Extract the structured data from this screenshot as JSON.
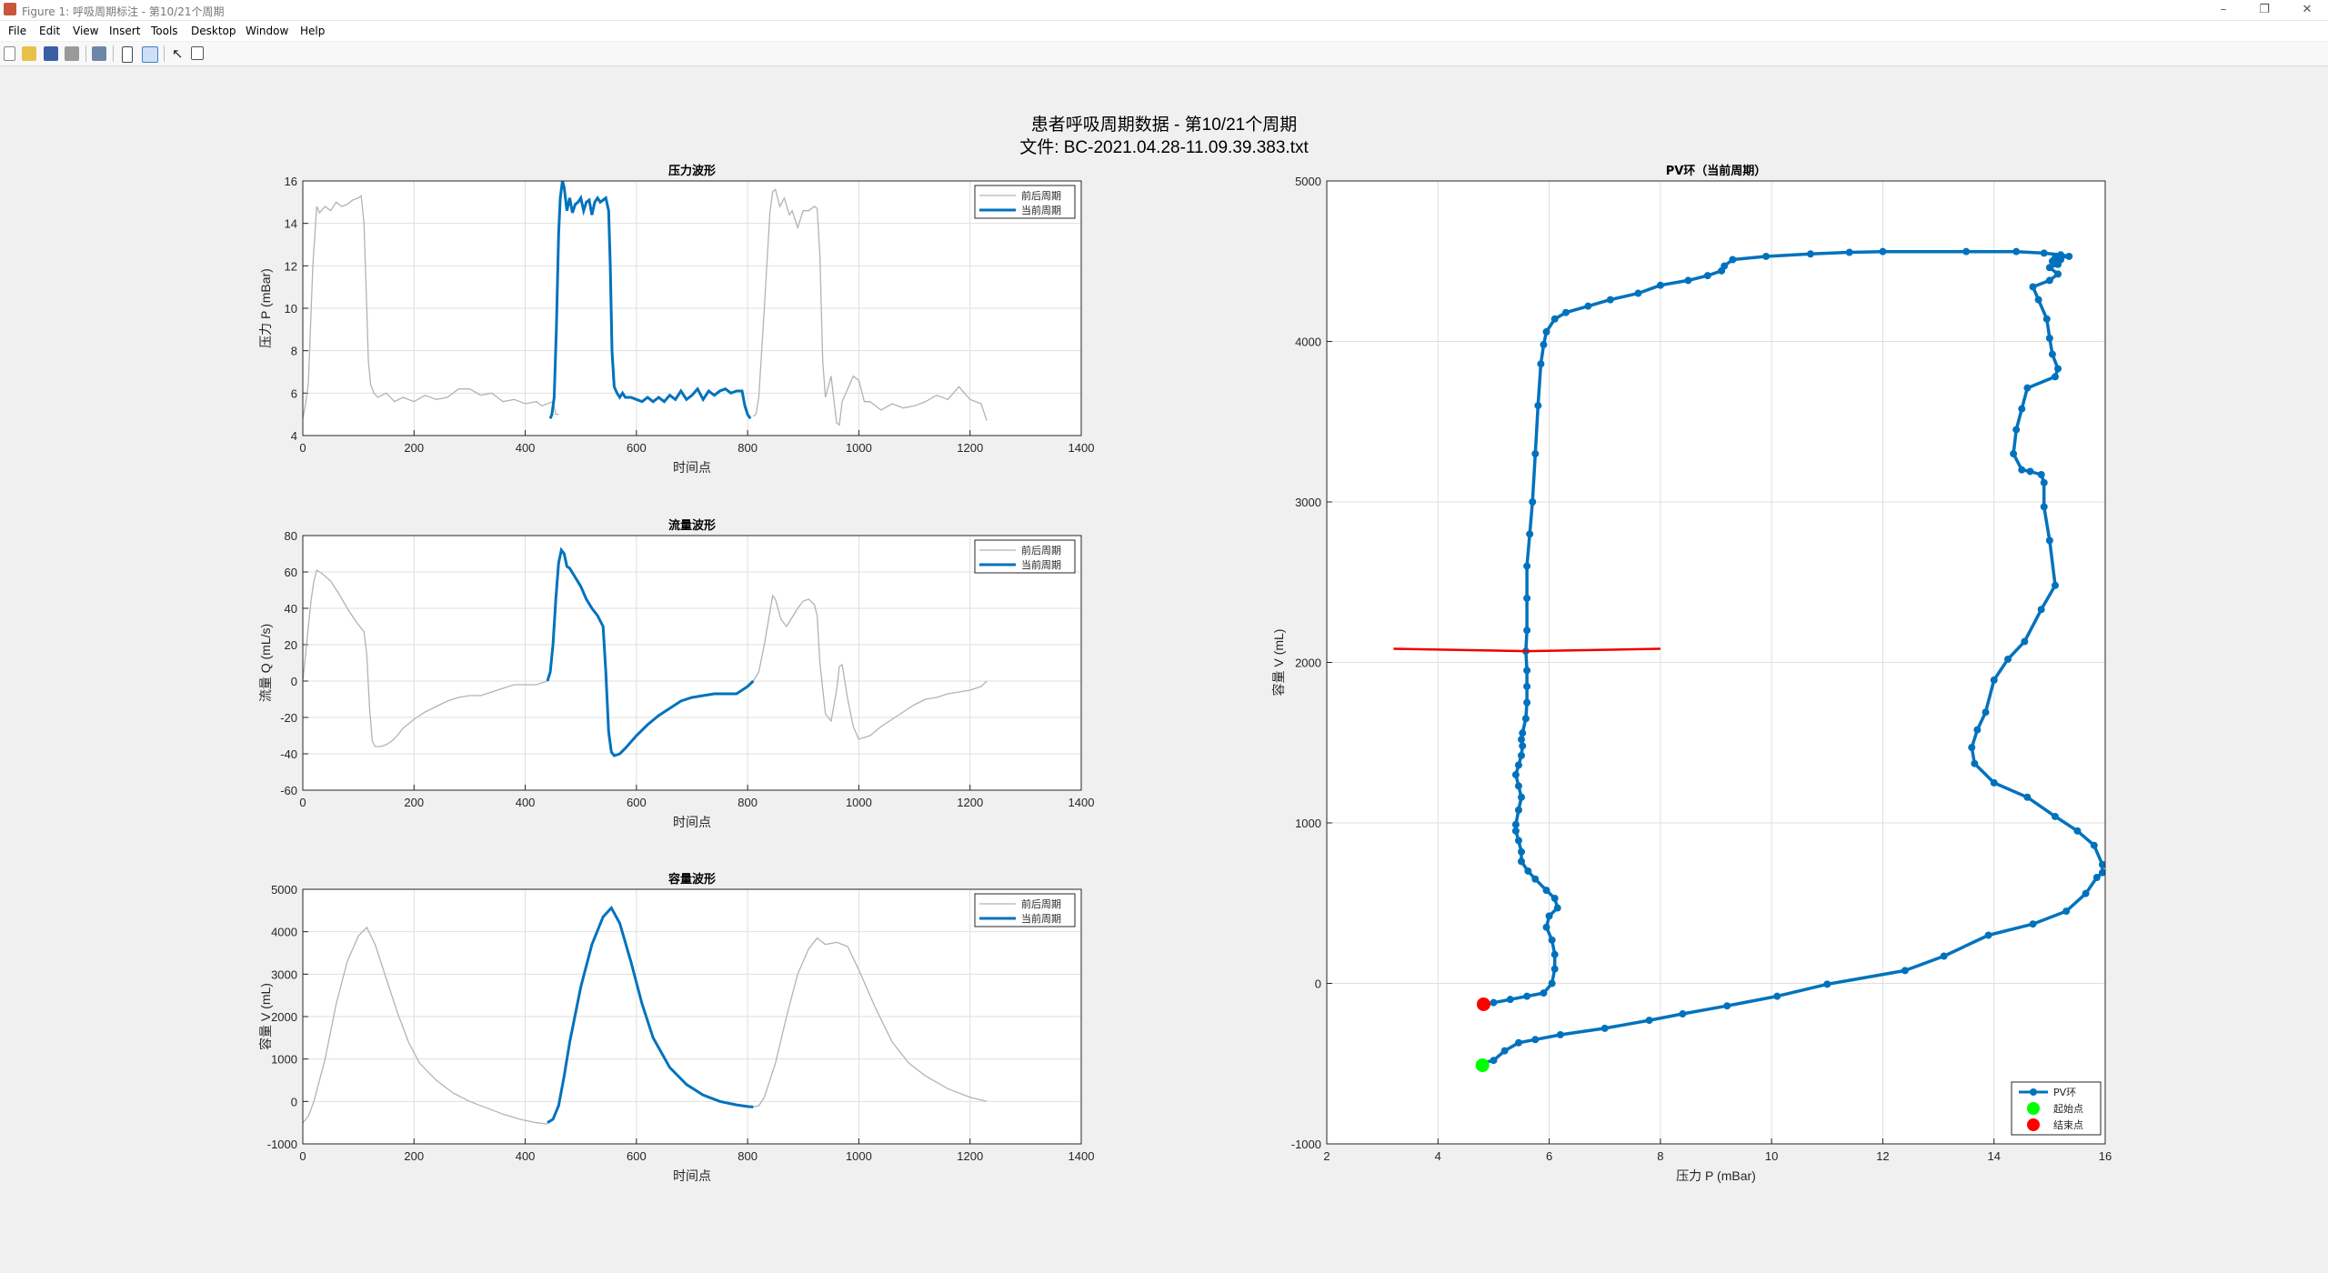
{
  "window": {
    "title": "Figure 1: 呼吸周期标注 - 第10/21个周期",
    "controls": [
      "–",
      "❐",
      "✕"
    ]
  },
  "menu": [
    "File",
    "Edit",
    "View",
    "Insert",
    "Tools",
    "Desktop",
    "Window",
    "Help"
  ],
  "toolbar": {
    "icons": [
      "new-figure-icon",
      "open-file-icon",
      "save-icon",
      "print-icon",
      "print-preview-icon",
      "dock-icon",
      "property-editor-icon",
      "pointer-icon",
      "plot-browser-icon"
    ]
  },
  "figure": {
    "title_line1": "患者呼吸周期数据 - 第10/21个周期",
    "title_line2": "文件: BC-2021.04.28-11.09.39.383.txt"
  },
  "colors": {
    "current": "#0072bd",
    "context": "#b3b3b3",
    "marker_line": "#ee0000",
    "start": "#00ff00",
    "end": "#ff0000",
    "grid": "#dfdfdf"
  },
  "chart_data": [
    {
      "id": "pressure",
      "type": "line",
      "title": "压力波形",
      "xlabel": "时间点",
      "ylabel": "压力 P (mBar)",
      "xlim": [
        0,
        1400
      ],
      "ylim": [
        4,
        16
      ],
      "xticks": [
        "0",
        "200",
        "400",
        "600",
        "800",
        "1000",
        "1200",
        "1400"
      ],
      "yticks": [
        "4",
        "6",
        "8",
        "10",
        "12",
        "14",
        "16"
      ],
      "grid": true,
      "legend": [
        "前后周期",
        "当前周期"
      ],
      "legend_position": "top-right",
      "series": [
        {
          "name": "前后周期",
          "role": "context",
          "x": [
            0,
            5,
            10,
            18,
            25,
            30,
            40,
            50,
            60,
            70,
            80,
            90,
            100,
            105,
            110,
            115,
            118,
            122,
            128,
            135,
            150,
            165,
            180,
            200,
            220,
            240,
            260,
            280,
            300,
            320,
            340,
            360,
            380,
            400,
            420,
            430,
            440,
            450,
            455,
            460
          ],
          "y": [
            4.8,
            5.5,
            6.5,
            12,
            14.8,
            14.5,
            14.8,
            14.6,
            15,
            14.8,
            14.9,
            15.1,
            15.2,
            15.3,
            14,
            10,
            7.5,
            6.4,
            6.0,
            5.8,
            6.0,
            5.6,
            5.8,
            5.6,
            5.9,
            5.7,
            5.8,
            6.2,
            6.2,
            5.9,
            6.0,
            5.6,
            5.7,
            5.5,
            5.6,
            5.4,
            5.5,
            5.6,
            5.0,
            5.0
          ]
        },
        {
          "name": "前后周期",
          "role": "context",
          "x": [
            810,
            815,
            820,
            830,
            840,
            845,
            850,
            858,
            866,
            875,
            880,
            890,
            900,
            910,
            920,
            925,
            930,
            935,
            940,
            950,
            960,
            965,
            970,
            980,
            990,
            1000,
            1010,
            1020,
            1040,
            1060,
            1080,
            1100,
            1120,
            1140,
            1160,
            1180,
            1200,
            1220,
            1230
          ],
          "y": [
            4.9,
            5.0,
            5.8,
            10,
            14.5,
            15.5,
            15.6,
            14.8,
            15.2,
            14.4,
            14.6,
            13.8,
            14.6,
            14.6,
            14.8,
            14.7,
            12.5,
            7.5,
            5.8,
            6.8,
            4.6,
            4.5,
            5.6,
            6.2,
            6.8,
            6.6,
            5.6,
            5.6,
            5.2,
            5.5,
            5.3,
            5.4,
            5.6,
            5.9,
            5.7,
            6.3,
            5.7,
            5.5,
            4.7
          ]
        },
        {
          "name": "当前周期",
          "role": "current",
          "x": [
            445,
            448,
            452,
            456,
            460,
            463,
            467,
            470,
            475,
            480,
            485,
            490,
            495,
            500,
            505,
            510,
            515,
            520,
            525,
            530,
            535,
            540,
            545,
            550,
            553,
            556,
            560,
            565,
            570,
            575,
            580,
            590,
            600,
            610,
            620,
            630,
            640,
            650,
            660,
            670,
            680,
            690,
            700,
            710,
            720,
            730,
            740,
            750,
            760,
            770,
            780,
            790,
            795,
            800,
            805
          ],
          "y": [
            4.8,
            5.0,
            5.8,
            9.0,
            13.5,
            15.2,
            16.0,
            15.7,
            14.6,
            15.2,
            14.5,
            14.9,
            15.0,
            15.2,
            14.6,
            15.0,
            15.1,
            14.4,
            15.0,
            15.2,
            15.0,
            15.1,
            15.2,
            14.6,
            12.0,
            8.0,
            6.3,
            6.0,
            5.8,
            6.0,
            5.8,
            5.8,
            5.7,
            5.6,
            5.8,
            5.6,
            5.8,
            5.6,
            5.9,
            5.7,
            6.1,
            5.7,
            5.9,
            6.2,
            5.7,
            6.1,
            5.9,
            6.1,
            6.2,
            6.0,
            6.1,
            6.1,
            5.4,
            5.0,
            4.8
          ]
        }
      ]
    },
    {
      "id": "flow",
      "type": "line",
      "title": "流量波形",
      "xlabel": "时间点",
      "ylabel": "流量 Q (mL/s)",
      "xlim": [
        0,
        1400
      ],
      "ylim": [
        -60,
        80
      ],
      "xticks": [
        "0",
        "200",
        "400",
        "600",
        "800",
        "1000",
        "1200",
        "1400"
      ],
      "yticks": [
        "-60",
        "-40",
        "-20",
        "0",
        "20",
        "40",
        "60",
        "80"
      ],
      "grid": true,
      "legend": [
        "前后周期",
        "当前周期"
      ],
      "legend_position": "top-right",
      "series": [
        {
          "name": "前后周期",
          "role": "context",
          "x": [
            0,
            5,
            10,
            15,
            20,
            25,
            35,
            50,
            65,
            80,
            95,
            110,
            115,
            120,
            125,
            130,
            140,
            150,
            160,
            170,
            180,
            200,
            220,
            240,
            260,
            280,
            300,
            320,
            340,
            360,
            380,
            400,
            420,
            430,
            440
          ],
          "y": [
            0,
            15,
            30,
            45,
            55,
            61,
            59,
            55,
            48,
            40,
            33,
            27,
            15,
            -15,
            -33,
            -36,
            -36,
            -35,
            -33,
            -30,
            -26,
            -21,
            -17,
            -14,
            -11,
            -9,
            -8,
            -8,
            -6,
            -4,
            -2,
            -2,
            -2,
            -1,
            0
          ]
        },
        {
          "name": "前后周期",
          "role": "context",
          "x": [
            810,
            820,
            830,
            840,
            845,
            850,
            860,
            870,
            880,
            890,
            900,
            910,
            920,
            925,
            930,
            940,
            950,
            960,
            965,
            970,
            980,
            990,
            1000,
            1020,
            1040,
            1060,
            1080,
            1100,
            1120,
            1140,
            1160,
            1180,
            1200,
            1220,
            1230
          ],
          "y": [
            0,
            5,
            20,
            38,
            47,
            45,
            34,
            30,
            35,
            40,
            44,
            45,
            42,
            36,
            10,
            -18,
            -22,
            -5,
            8,
            9,
            -10,
            -25,
            -32,
            -30,
            -25,
            -21,
            -17,
            -13,
            -10,
            -9,
            -7,
            -6,
            -5,
            -3,
            0
          ]
        },
        {
          "name": "当前周期",
          "role": "current",
          "x": [
            440,
            445,
            450,
            455,
            460,
            465,
            470,
            475,
            480,
            490,
            500,
            510,
            520,
            530,
            540,
            545,
            550,
            555,
            560,
            570,
            580,
            600,
            620,
            640,
            660,
            680,
            700,
            720,
            740,
            760,
            780,
            800,
            810
          ],
          "y": [
            0,
            5,
            20,
            45,
            65,
            72,
            70,
            63,
            62,
            57,
            52,
            45,
            40,
            36,
            30,
            5,
            -28,
            -39,
            -41,
            -40,
            -37,
            -30,
            -24,
            -19,
            -15,
            -11,
            -9,
            -8,
            -7,
            -7,
            -7,
            -3,
            0
          ]
        }
      ]
    },
    {
      "id": "volume",
      "type": "line",
      "title": "容量波形",
      "xlabel": "时间点",
      "ylabel": "容量 V (mL)",
      "xlim": [
        0,
        1400
      ],
      "ylim": [
        -1000,
        5000
      ],
      "xticks": [
        "0",
        "200",
        "400",
        "600",
        "800",
        "1000",
        "1200",
        "1400"
      ],
      "yticks": [
        "-1000",
        "0",
        "1000",
        "2000",
        "3000",
        "4000",
        "5000"
      ],
      "grid": true,
      "legend": [
        "前后周期",
        "当前周期"
      ],
      "legend_position": "top-right",
      "series": [
        {
          "name": "前后周期",
          "role": "context",
          "x": [
            0,
            10,
            20,
            40,
            60,
            80,
            100,
            115,
            130,
            150,
            170,
            190,
            210,
            240,
            270,
            300,
            330,
            360,
            390,
            420,
            440
          ],
          "y": [
            -500,
            -350,
            0,
            1000,
            2300,
            3300,
            3900,
            4100,
            3700,
            2900,
            2100,
            1400,
            900,
            500,
            200,
            0,
            -150,
            -300,
            -420,
            -500,
            -530
          ]
        },
        {
          "name": "前后周期",
          "role": "context",
          "x": [
            810,
            820,
            830,
            850,
            870,
            890,
            910,
            925,
            940,
            960,
            980,
            1000,
            1030,
            1060,
            1090,
            1120,
            1160,
            1200,
            1230
          ],
          "y": [
            -130,
            -100,
            100,
            900,
            2000,
            3000,
            3600,
            3850,
            3700,
            3750,
            3650,
            3100,
            2200,
            1400,
            900,
            600,
            300,
            100,
            0
          ]
        },
        {
          "name": "当前周期",
          "role": "current",
          "x": [
            440,
            450,
            460,
            470,
            480,
            500,
            520,
            540,
            555,
            570,
            590,
            610,
            630,
            660,
            690,
            720,
            750,
            780,
            800,
            810
          ],
          "y": [
            -500,
            -420,
            -100,
            600,
            1400,
            2700,
            3700,
            4350,
            4560,
            4200,
            3300,
            2300,
            1500,
            800,
            400,
            150,
            0,
            -80,
            -120,
            -130
          ]
        }
      ]
    },
    {
      "id": "pv_loop",
      "type": "line",
      "title": "PV环（当前周期）",
      "xlabel": "压力 P (mBar)",
      "ylabel": "容量 V (mL)",
      "xlim": [
        2,
        16
      ],
      "ylim": [
        -1000,
        5000
      ],
      "xticks": [
        "2",
        "4",
        "6",
        "8",
        "10",
        "12",
        "14",
        "16"
      ],
      "yticks": [
        "-1000",
        "0",
        "1000",
        "2000",
        "3000",
        "4000",
        "5000"
      ],
      "grid": true,
      "legend": [
        "PV环",
        "起始点",
        "结束点"
      ],
      "legend_position": "bottom-right",
      "series": [
        {
          "name": "PV环",
          "role": "loop",
          "x": [
            4.8,
            4.75,
            5.0,
            5.2,
            5.45,
            5.75,
            6.2,
            7.0,
            7.8,
            8.4,
            9.2,
            10.1,
            11.0,
            12.4,
            13.1,
            13.9,
            14.7,
            15.3,
            15.65,
            15.85,
            15.95,
            15.95,
            15.8,
            15.5,
            15.1,
            14.6,
            14.0,
            13.65,
            13.6,
            13.7,
            13.85,
            14.0,
            14.25,
            14.55,
            14.85,
            15.1,
            15.0,
            14.9,
            14.9,
            14.85,
            14.65,
            14.5,
            14.35,
            14.4,
            14.5,
            14.6,
            15.1,
            15.15,
            15.05,
            15.0,
            14.95,
            14.8,
            14.7,
            15.0,
            15.15,
            15.0,
            15.15,
            15.05,
            15.2,
            15.1,
            15.35,
            15.2,
            14.9,
            14.4,
            13.5,
            12.0,
            11.4,
            10.7,
            9.9,
            9.3,
            9.15,
            9.1,
            8.85,
            8.5,
            8.0,
            7.6,
            7.1,
            6.7,
            6.3,
            6.1,
            5.95,
            5.9,
            5.85,
            5.8,
            5.75,
            5.7,
            5.65,
            5.6,
            5.6,
            5.6,
            5.58,
            5.6,
            5.6,
            5.6,
            5.58,
            5.52,
            5.5,
            5.52,
            5.5,
            5.45,
            5.4,
            5.45,
            5.5,
            5.45,
            5.4,
            5.4,
            5.45,
            5.5,
            5.5,
            5.62,
            5.75,
            5.95,
            6.1,
            6.15,
            6.0,
            5.95,
            6.05,
            6.1,
            6.1,
            6.05,
            5.9,
            5.6,
            5.3,
            5.0,
            4.85
          ],
          "y": [
            -500,
            -500,
            -480,
            -420,
            -370,
            -350,
            -320,
            -280,
            -230,
            -190,
            -140,
            -80,
            -5,
            80,
            170,
            300,
            370,
            450,
            560,
            660,
            690,
            740,
            860,
            950,
            1040,
            1160,
            1250,
            1370,
            1470,
            1580,
            1690,
            1890,
            2020,
            2130,
            2330,
            2480,
            2760,
            2970,
            3120,
            3170,
            3190,
            3200,
            3300,
            3450,
            3580,
            3710,
            3780,
            3830,
            3920,
            4020,
            4140,
            4260,
            4340,
            4380,
            4420,
            4460,
            4480,
            4500,
            4510,
            4520,
            4530,
            4540,
            4550,
            4560,
            4560,
            4560,
            4555,
            4545,
            4530,
            4510,
            4470,
            4440,
            4410,
            4380,
            4350,
            4300,
            4260,
            4220,
            4180,
            4140,
            4060,
            3980,
            3860,
            3600,
            3300,
            3000,
            2800,
            2600,
            2400,
            2200,
            2070,
            1950,
            1850,
            1750,
            1650,
            1560,
            1520,
            1480,
            1420,
            1360,
            1300,
            1230,
            1160,
            1080,
            990,
            950,
            890,
            820,
            760,
            700,
            650,
            580,
            530,
            470,
            420,
            350,
            270,
            180,
            90,
            0,
            -60,
            -80,
            -100,
            -120,
            -130
          ]
        },
        {
          "name": "起始点",
          "role": "start",
          "x": [
            4.8
          ],
          "y": [
            -510
          ]
        },
        {
          "name": "结束点",
          "role": "end",
          "x": [
            4.82
          ],
          "y": [
            -130
          ]
        },
        {
          "role": "marker_line",
          "x": [
            3.2,
            5.6,
            8.0
          ],
          "y": [
            2085,
            2070,
            2085
          ]
        }
      ]
    }
  ]
}
